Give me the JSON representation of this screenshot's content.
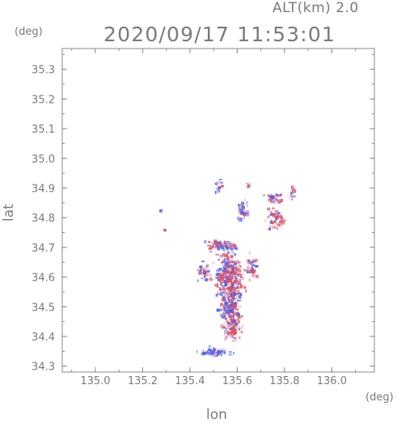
{
  "header": {
    "altitude_label": "ALT(km)  2.0",
    "timestamp": "2020/09/17 11:53:01",
    "y_unit": "(deg)",
    "x_unit": "(deg)"
  },
  "chart_data": {
    "type": "heatmap",
    "xlabel": "lon",
    "ylabel": "lat",
    "xlim": [
      134.86,
      136.18
    ],
    "ylim": [
      34.28,
      35.37
    ],
    "x_ticks": [
      "135.0",
      "135.2",
      "135.4",
      "135.6",
      "135.8",
      "136.0"
    ],
    "y_ticks": [
      "34.3",
      "34.4",
      "34.5",
      "34.6",
      "34.7",
      "34.8",
      "34.9",
      "35.0",
      "35.1",
      "35.2",
      "35.3"
    ],
    "grid": false,
    "colors": {
      "positive": "#e8505a",
      "negative": "#4a5ff0",
      "frame": "#8a8a8a"
    },
    "clusters": [
      {
        "lon": 135.56,
        "lat": 34.6,
        "dlon": 0.055,
        "dlat": 0.07,
        "n": 320,
        "red_bias": 0.6
      },
      {
        "lon": 135.57,
        "lat": 34.49,
        "dlon": 0.04,
        "dlat": 0.05,
        "n": 190,
        "red_bias": 0.45
      },
      {
        "lon": 135.58,
        "lat": 34.42,
        "dlon": 0.03,
        "dlat": 0.025,
        "n": 60,
        "red_bias": 0.7
      },
      {
        "lon": 135.53,
        "lat": 34.71,
        "dlon": 0.05,
        "dlat": 0.015,
        "n": 70,
        "red_bias": 0.5
      },
      {
        "lon": 135.5,
        "lat": 34.35,
        "dlon": 0.05,
        "dlat": 0.012,
        "n": 55,
        "red_bias": 0.2
      },
      {
        "lon": 135.62,
        "lat": 34.83,
        "dlon": 0.02,
        "dlat": 0.03,
        "n": 40,
        "red_bias": 0.2
      },
      {
        "lon": 135.76,
        "lat": 34.8,
        "dlon": 0.03,
        "dlat": 0.03,
        "n": 55,
        "red_bias": 0.7
      },
      {
        "lon": 135.75,
        "lat": 34.87,
        "dlon": 0.035,
        "dlat": 0.015,
        "n": 30,
        "red_bias": 0.5
      },
      {
        "lon": 135.83,
        "lat": 34.89,
        "dlon": 0.012,
        "dlat": 0.02,
        "n": 18,
        "red_bias": 0.3
      },
      {
        "lon": 135.52,
        "lat": 34.91,
        "dlon": 0.015,
        "dlat": 0.018,
        "n": 16,
        "red_bias": 0.3
      },
      {
        "lon": 135.45,
        "lat": 34.62,
        "dlon": 0.02,
        "dlat": 0.03,
        "n": 30,
        "red_bias": 0.35
      },
      {
        "lon": 135.66,
        "lat": 34.64,
        "dlon": 0.02,
        "dlat": 0.04,
        "n": 40,
        "red_bias": 0.4
      },
      {
        "lon": 135.27,
        "lat": 34.83,
        "dlon": 0.005,
        "dlat": 0.005,
        "n": 3,
        "red_bias": 0.1
      },
      {
        "lon": 135.29,
        "lat": 34.76,
        "dlon": 0.004,
        "dlat": 0.004,
        "n": 3,
        "red_bias": 0.9
      },
      {
        "lon": 135.65,
        "lat": 34.91,
        "dlon": 0.01,
        "dlat": 0.008,
        "n": 6,
        "red_bias": 0.3
      }
    ]
  }
}
